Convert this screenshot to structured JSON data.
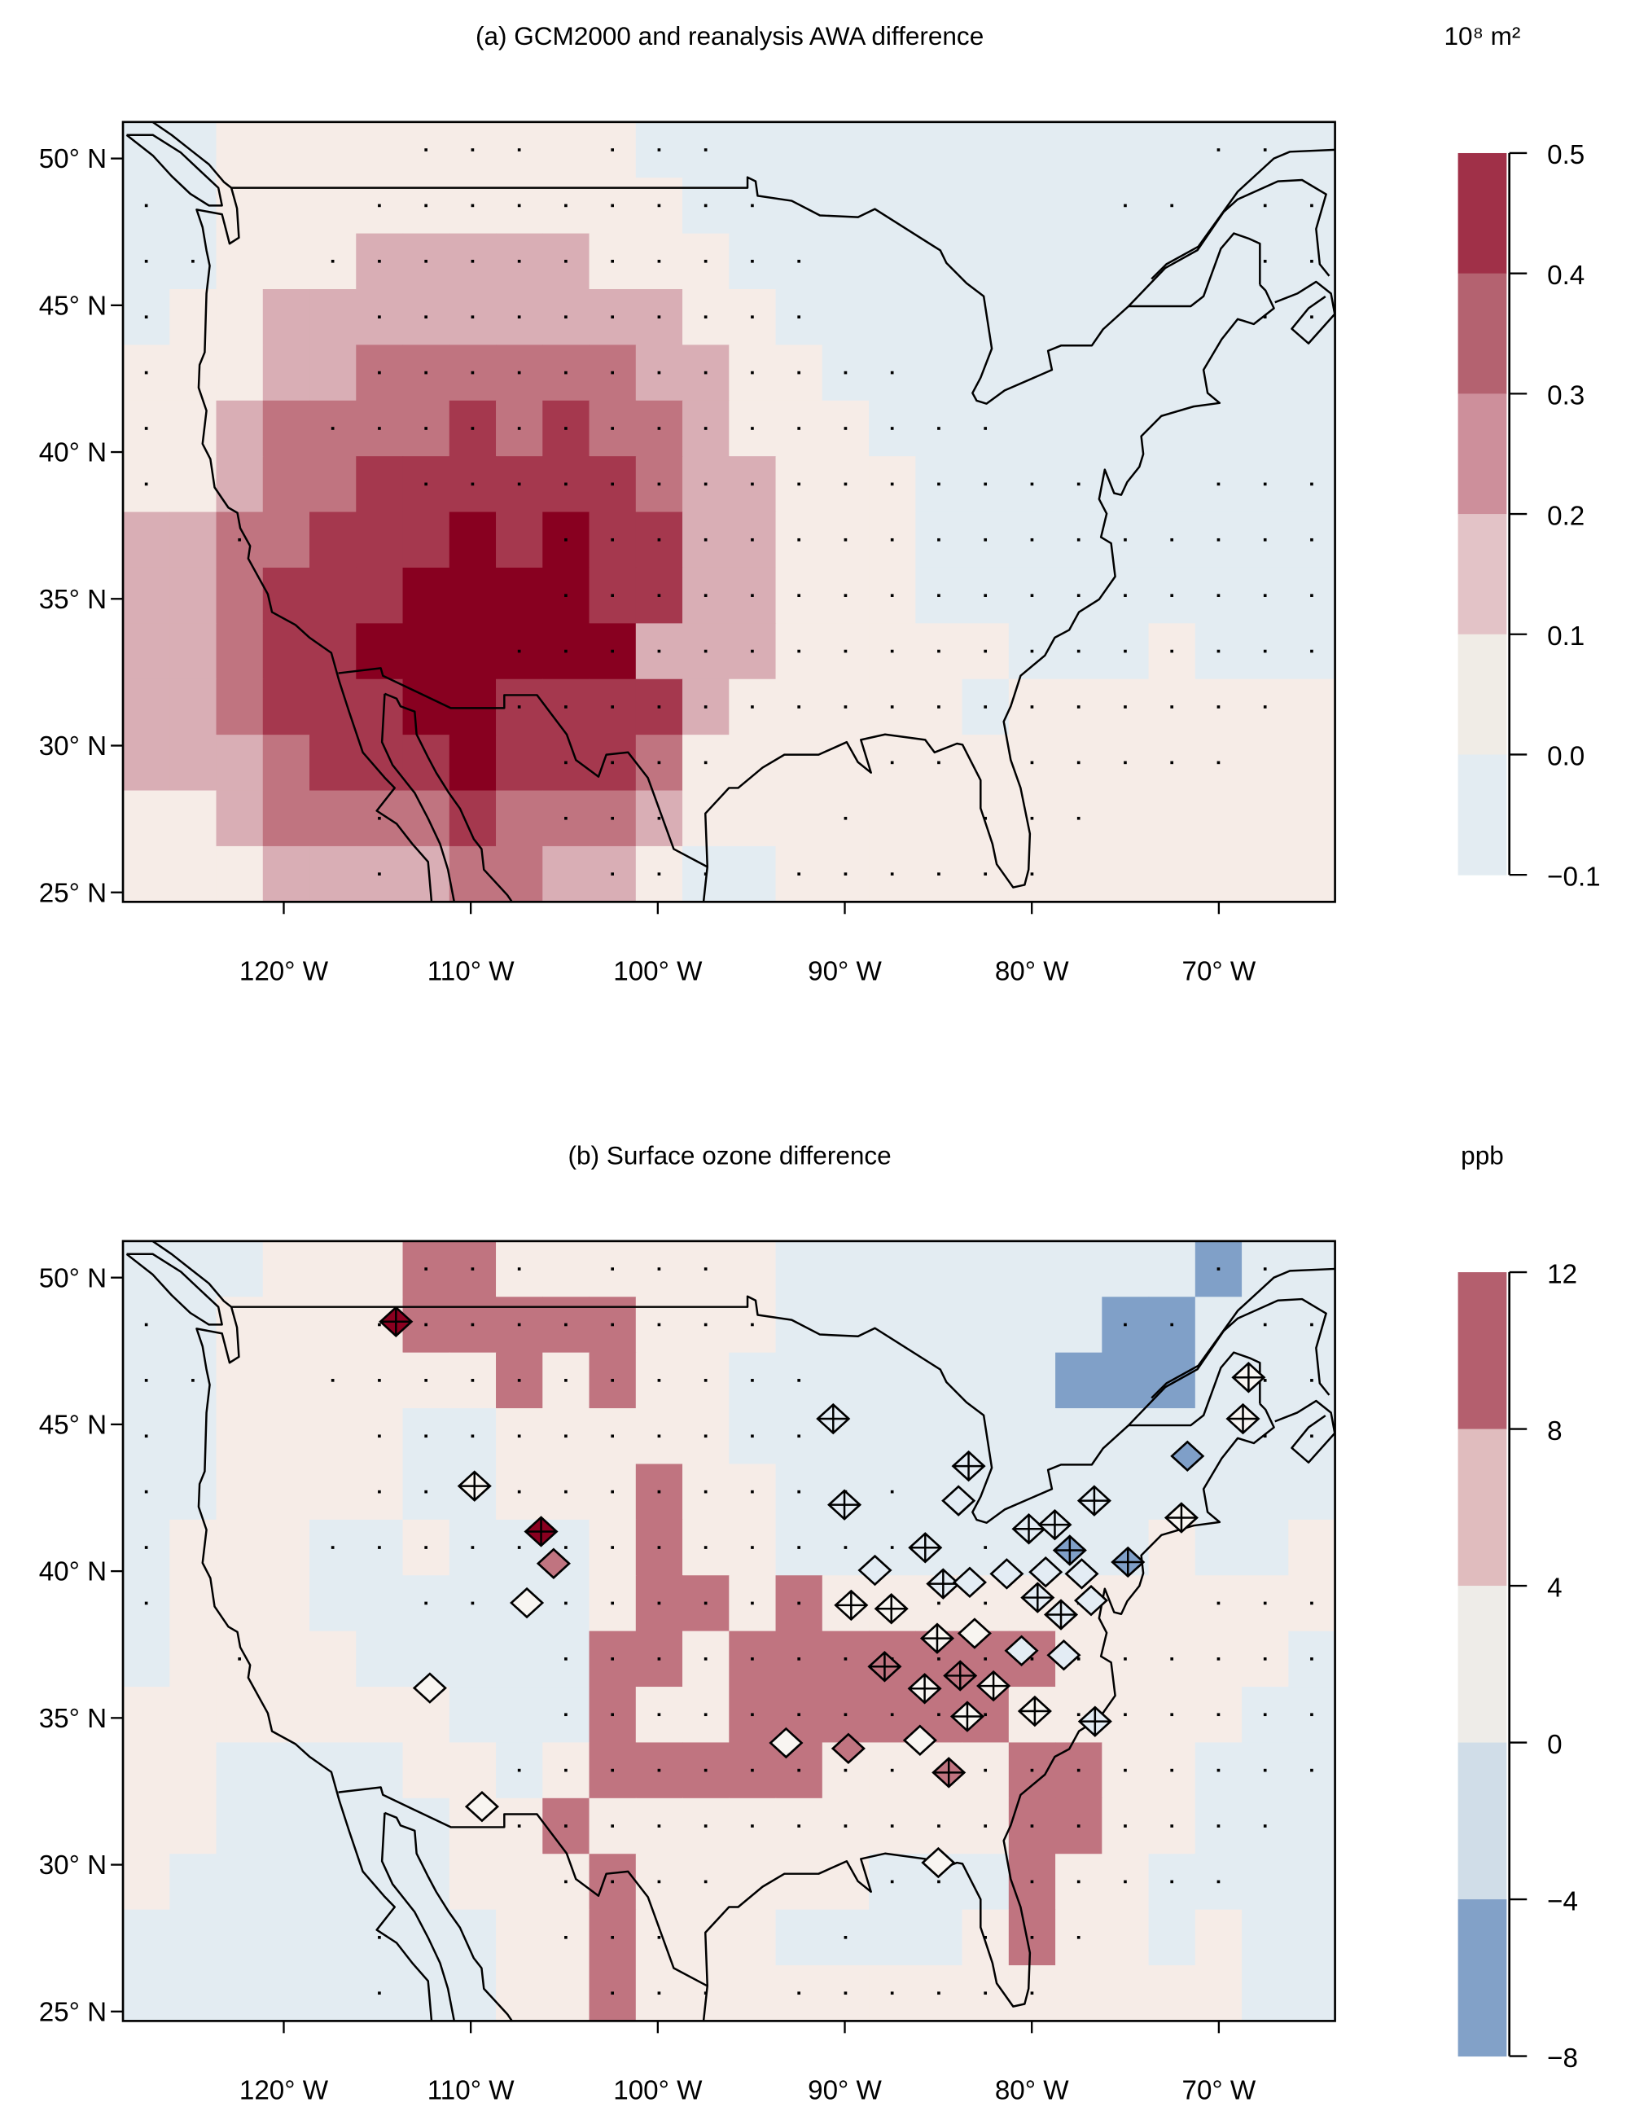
{
  "dots": [
    "------...-...----------..-",
    ".----.........-------..-..",
    "..--...........---------..",
    ".----..........---------..",
    ".----............---------",
    ".---...............-------",
    ".-----...............--...",
    "--.------.................",
    "---------.................",
    "--------..................",
    "--------.................-",
    "---------....---..-.....--",
    "-----.---...---.--...-----",
    "-----.----...-......------"
  ],
  "chart_data": [
    {
      "type": "heatmap",
      "panel": "a",
      "title": "(a) GCM2000 and reanalysis AWA difference",
      "unit": "10⁸ m²",
      "x_ticks": [
        {
          "lon": -120,
          "label": "120° W"
        },
        {
          "lon": -110,
          "label": "110° W"
        },
        {
          "lon": -100,
          "label": "100° W"
        },
        {
          "lon": -90,
          "label": "90° W"
        },
        {
          "lon": -80,
          "label": "80° W"
        },
        {
          "lon": -70,
          "label": "70° W"
        }
      ],
      "y_ticks": [
        {
          "lat": 50,
          "label": "50° N"
        },
        {
          "lat": 45,
          "label": "45° N"
        },
        {
          "lat": 40,
          "label": "40° N"
        },
        {
          "lat": 35,
          "label": "35° N"
        },
        {
          "lat": 30,
          "label": "30° N"
        },
        {
          "lat": 25,
          "label": "25° N"
        }
      ],
      "lon_range": [
        -128.75,
        -63.75
      ],
      "lat_range": [
        24.57,
        51.16
      ],
      "grid_cell_deg": {
        "lon": 2.5,
        "lat": 1.9
      },
      "colorbar": {
        "ticks": [
          "0.5",
          "0.4",
          "0.3",
          "0.2",
          "0.1",
          "0.0",
          "−0.1"
        ],
        "bins_top_to_bottom": [
          {
            "range": "0.4 to 0.5",
            "color": "#a03048"
          },
          {
            "range": "0.3 to 0.4",
            "color": "#b46270"
          },
          {
            "range": "0.2 to 0.3",
            "color": "#cd8f9b"
          },
          {
            "range": "0.1 to 0.2",
            "color": "#e3c3c7"
          },
          {
            "range": "0.0 to 0.1",
            "color": "#f0ece6"
          },
          {
            "range": "−0.1 to 0.0",
            "color": "#e3ecf2"
          }
        ]
      },
      "codes": {
        "B": {
          "range": "−0.1 to 0.0",
          "color": "#e3ecf2"
        },
        "0": {
          "range": "0.0 to 0.1",
          "color": "#f6ece7"
        },
        "1": {
          "range": "0.1 to 0.2",
          "color": "#d9aeb5"
        },
        "2": {
          "range": "0.2 to 0.3",
          "color": "#c07480"
        },
        "3": {
          "range": "0.3 to 0.4",
          "color": "#a5384e"
        },
        "4": {
          "range": "0.4 to 0.5",
          "color": "#880020"
        }
      },
      "grid_rows_north_to_south": [
        "BB000000000BBBBBBBBBBBBBBB",
        "BB0000000000BBBBBBBBBBBBBB",
        "BB00011111000BBBBBBBBBBBBB",
        "B0011111111100BBBBBBBBBBBB",
        "000112222221100BBBBBBBBBBB",
        "0012222323221000BBBBBBBBBB",
        "00122333333211000BBBBBBBBB",
        "11223334343311000BBBBBBBBB",
        "11233344443311000BBBBBBBBB",
        "1123344444411100000BBB0BBBB",
        "112333443333100000B0000000",
        "11123334333200000000000000",
        "00122223222100000000000000",
        "000111122110BB000000000000"
      ]
    },
    {
      "type": "heatmap",
      "panel": "b",
      "title": "(b) Surface ozone difference",
      "unit": "ppb",
      "x_ticks": [
        {
          "lon": -120,
          "label": "120° W"
        },
        {
          "lon": -110,
          "label": "110° W"
        },
        {
          "lon": -100,
          "label": "100° W"
        },
        {
          "lon": -90,
          "label": "90° W"
        },
        {
          "lon": -80,
          "label": "80° W"
        },
        {
          "lon": -70,
          "label": "70° W"
        }
      ],
      "y_ticks": [
        {
          "lat": 50,
          "label": "50° N"
        },
        {
          "lat": 45,
          "label": "45° N"
        },
        {
          "lat": 40,
          "label": "40° N"
        },
        {
          "lat": 35,
          "label": "35° N"
        },
        {
          "lat": 30,
          "label": "30° N"
        },
        {
          "lat": 25,
          "label": "25° N"
        }
      ],
      "lon_range": [
        -128.75,
        -63.75
      ],
      "lat_range": [
        24.57,
        51.16
      ],
      "grid_cell_deg": {
        "lon": 2.5,
        "lat": 1.9
      },
      "colorbar": {
        "ticks": [
          "12",
          "8",
          "4",
          "0",
          "−4",
          "−8"
        ],
        "bins_top_to_bottom": [
          {
            "range": "8 to 12",
            "color": "#b45f6e"
          },
          {
            "range": "4 to 8",
            "color": "#e0bcbe"
          },
          {
            "range": "0 to 4",
            "color": "#eeece8"
          },
          {
            "range": "−4 to 0",
            "color": "#d0dde8"
          },
          {
            "range": "−8 to −4",
            "color": "#82a1c8"
          }
        ]
      },
      "codes": {
        "D": {
          "range": "−8 to −4",
          "color": "#80a0c8"
        },
        "B": {
          "range": "−4 to 0",
          "color": "#e3ecf2"
        },
        "0": {
          "range": "0 to 4",
          "color": "#f6ece7"
        },
        "1": {
          "range": "4 to 8",
          "color": "#e0bcbe"
        },
        "2": {
          "range": "8 to 12",
          "color": "#c07480"
        }
      },
      "grid_rows_north_to_south": [
        "BBB00022000000BBBBBBBBBDBB",
        "BB000022222000BBBBBBBDDBBB",
        "BB00000020200BBBBBBBDDDBBB",
        "BB0000BB00000BBBBBBBBBBBBB",
        "BB0000BB000200BBBBBBBBBBBB",
        "B000BB0BBB0200BBBBBBBB0BB0",
        "B000BBBBBB0220200000000000",
        "B0000BBBBB220222222200000B",
        "0000000BBB20022222200000BB",
        "00BBBB00B02222200002200BBB",
        "00BBBBB0020000000002200BBB",
        "0BBBBBB000200000BBB200BBBB",
        "BBBBBBBB002000BBBB0200B0BB",
        "BBBBBBBB0020000000000000BB"
      ],
      "station_fill_codes": {
        "R": {
          "range": "above 12",
          "color": "#8a0020"
        },
        "P": {
          "range": "8 to 12",
          "color": "#c07480"
        },
        "W": {
          "range": "0 to 4",
          "color": "#f8f5f1"
        },
        "L": {
          "range": "−4 to 0",
          "color": "#e3ecf4"
        },
        "D": {
          "range": "−8 to −4",
          "color": "#7f9fc8"
        }
      },
      "stations": [
        {
          "lon": -114.0,
          "lat": 48.5,
          "fill": "R",
          "cross": true
        },
        {
          "lon": -109.8,
          "lat": 42.9,
          "fill": "W",
          "cross": true
        },
        {
          "lon": -106.24,
          "lat": 41.35,
          "fill": "R",
          "cross": true
        },
        {
          "lon": -105.57,
          "lat": 40.26,
          "fill": "P",
          "cross": false
        },
        {
          "lon": -107.0,
          "lat": 38.92,
          "fill": "W",
          "cross": false
        },
        {
          "lon": -112.19,
          "lat": 36.02,
          "fill": "W",
          "cross": false
        },
        {
          "lon": -109.4,
          "lat": 31.98,
          "fill": "W",
          "cross": false
        },
        {
          "lon": -90.62,
          "lat": 45.19,
          "fill": "L",
          "cross": true
        },
        {
          "lon": -83.38,
          "lat": 43.58,
          "fill": "L",
          "cross": true
        },
        {
          "lon": -68.41,
          "lat": 46.6,
          "fill": "W",
          "cross": true
        },
        {
          "lon": -68.71,
          "lat": 45.19,
          "fill": "W",
          "cross": true
        },
        {
          "lon": -71.68,
          "lat": 43.92,
          "fill": "D",
          "cross": false
        },
        {
          "lon": -83.92,
          "lat": 42.4,
          "fill": "L",
          "cross": false
        },
        {
          "lon": -90.02,
          "lat": 42.26,
          "fill": "L",
          "cross": true
        },
        {
          "lon": -76.66,
          "lat": 42.4,
          "fill": "L",
          "cross": true
        },
        {
          "lon": -72.0,
          "lat": 41.82,
          "fill": "W",
          "cross": true
        },
        {
          "lon": -80.16,
          "lat": 41.44,
          "fill": "L",
          "cross": true
        },
        {
          "lon": -78.77,
          "lat": 41.58,
          "fill": "L",
          "cross": true
        },
        {
          "lon": -77.97,
          "lat": 40.71,
          "fill": "D",
          "cross": true
        },
        {
          "lon": -74.86,
          "lat": 40.31,
          "fill": "D",
          "cross": true
        },
        {
          "lon": -85.7,
          "lat": 40.8,
          "fill": "L",
          "cross": true
        },
        {
          "lon": -88.39,
          "lat": 40.03,
          "fill": "L",
          "cross": false
        },
        {
          "lon": -84.74,
          "lat": 39.57,
          "fill": "L",
          "cross": true
        },
        {
          "lon": -83.32,
          "lat": 39.62,
          "fill": "L",
          "cross": false
        },
        {
          "lon": -81.34,
          "lat": 39.91,
          "fill": "L",
          "cross": false
        },
        {
          "lon": -79.26,
          "lat": 39.97,
          "fill": "L",
          "cross": false
        },
        {
          "lon": -77.33,
          "lat": 39.91,
          "fill": "L",
          "cross": false
        },
        {
          "lon": -89.66,
          "lat": 38.84,
          "fill": "W",
          "cross": true
        },
        {
          "lon": -87.51,
          "lat": 38.72,
          "fill": "W",
          "cross": true
        },
        {
          "lon": -79.69,
          "lat": 39.1,
          "fill": "L",
          "cross": true
        },
        {
          "lon": -78.44,
          "lat": 38.52,
          "fill": "L",
          "cross": true
        },
        {
          "lon": -76.83,
          "lat": 39.0,
          "fill": "L",
          "cross": false
        },
        {
          "lon": -85.06,
          "lat": 37.71,
          "fill": "W",
          "cross": true
        },
        {
          "lon": -83.06,
          "lat": 37.88,
          "fill": "W",
          "cross": false
        },
        {
          "lon": -80.55,
          "lat": 37.29,
          "fill": "L",
          "cross": false
        },
        {
          "lon": -78.29,
          "lat": 37.14,
          "fill": "L",
          "cross": false
        },
        {
          "lon": -87.87,
          "lat": 36.75,
          "fill": "P",
          "cross": true
        },
        {
          "lon": -83.83,
          "lat": 36.44,
          "fill": "P",
          "cross": true
        },
        {
          "lon": -85.73,
          "lat": 36.0,
          "fill": "W",
          "cross": true
        },
        {
          "lon": -82.05,
          "lat": 36.09,
          "fill": "W",
          "cross": true
        },
        {
          "lon": -83.45,
          "lat": 35.05,
          "fill": "W",
          "cross": true
        },
        {
          "lon": -79.84,
          "lat": 35.23,
          "fill": "W",
          "cross": true
        },
        {
          "lon": -76.62,
          "lat": 34.88,
          "fill": "L",
          "cross": true
        },
        {
          "lon": -93.14,
          "lat": 34.15,
          "fill": "W",
          "cross": false
        },
        {
          "lon": -89.81,
          "lat": 33.96,
          "fill": "P",
          "cross": false
        },
        {
          "lon": -85.98,
          "lat": 34.24,
          "fill": "W",
          "cross": false
        },
        {
          "lon": -84.44,
          "lat": 33.14,
          "fill": "P",
          "cross": true
        },
        {
          "lon": -85.0,
          "lat": 30.07,
          "fill": "W",
          "cross": false
        }
      ]
    }
  ]
}
